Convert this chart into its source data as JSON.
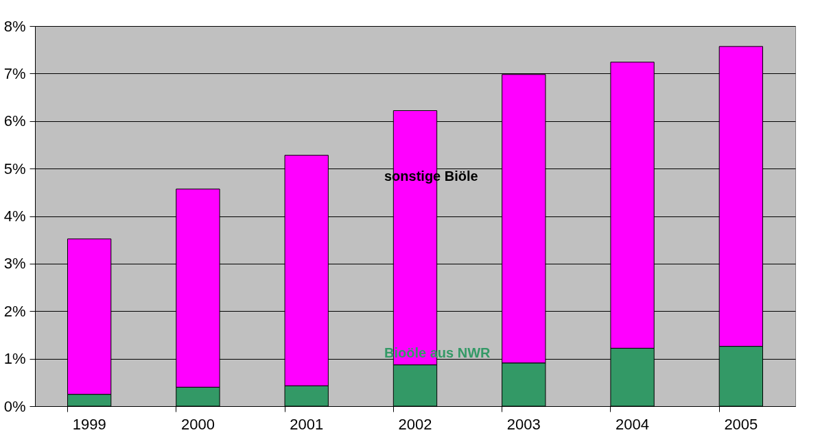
{
  "chart_data": {
    "type": "bar",
    "stacked": true,
    "categories": [
      "1999",
      "2000",
      "2001",
      "2002",
      "2003",
      "2004",
      "2005"
    ],
    "series": [
      {
        "name": "Bioöle aus NWR",
        "color": "#339966",
        "values": [
          0.25,
          0.4,
          0.43,
          0.87,
          0.91,
          1.22,
          1.26
        ]
      },
      {
        "name": "sonstige Biöle",
        "color": "#ff00ff",
        "values": [
          3.27,
          4.17,
          4.85,
          5.35,
          6.07,
          6.02,
          6.31
        ]
      }
    ],
    "ylim": [
      0,
      8
    ],
    "yticks": [
      {
        "value": 0,
        "label": "0%"
      },
      {
        "value": 1,
        "label": "1%"
      },
      {
        "value": 2,
        "label": "2%"
      },
      {
        "value": 3,
        "label": "3%"
      },
      {
        "value": 4,
        "label": "4%"
      },
      {
        "value": 5,
        "label": "5%"
      },
      {
        "value": 6,
        "label": "6%"
      },
      {
        "value": 7,
        "label": "7%"
      },
      {
        "value": 8,
        "label": "8%"
      }
    ],
    "grid": "y",
    "legend": false
  }
}
